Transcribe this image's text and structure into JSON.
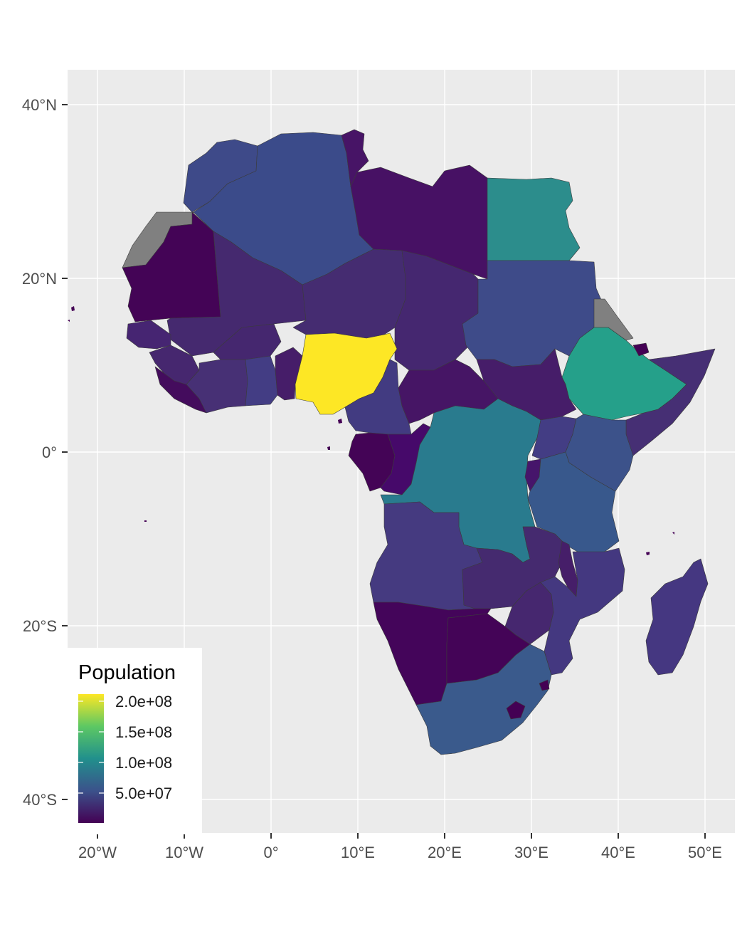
{
  "axes": {
    "x_ticks": [
      "20°W",
      "10°W",
      "0°",
      "10°E",
      "20°E",
      "30°E",
      "40°E",
      "50°E"
    ],
    "y_ticks": [
      "40°N",
      "20°N",
      "0°",
      "20°S",
      "40°S"
    ]
  },
  "legend": {
    "title": "Population",
    "labels": [
      "2.0e+08",
      "1.5e+08",
      "1.0e+08",
      "5.0e+07"
    ],
    "gradient": [
      "#440154",
      "#3b528b",
      "#21908c",
      "#5dc863",
      "#fde725"
    ]
  },
  "colors": {
    "panel_background": "#ebebeb",
    "grid": "#ffffff",
    "missing": "#808080",
    "highlight_nigeria": "#fde725"
  }
}
